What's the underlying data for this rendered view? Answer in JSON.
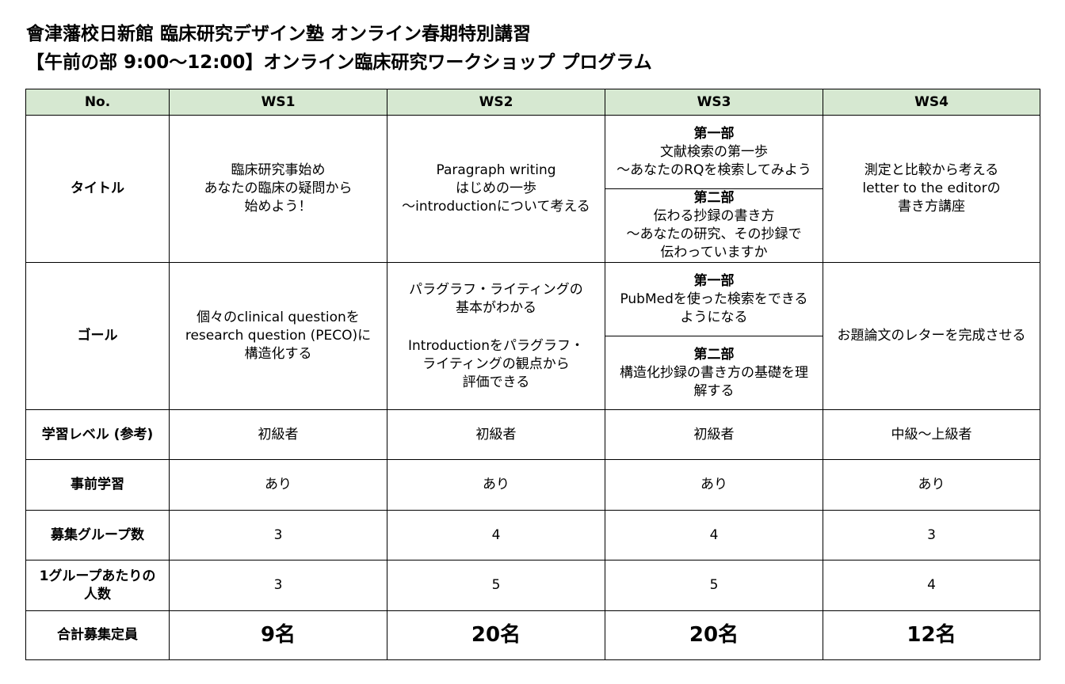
{
  "header": {
    "title_line1": "會津藩校日新館 臨床研究デザイン塾 オンライン春期特別講習",
    "title_line2": "【午前の部 9:00～12:00】オンライン臨床研究ワークショップ プログラム"
  },
  "table": {
    "columns": [
      "No.",
      "WS1",
      "WS2",
      "WS3",
      "WS4"
    ],
    "row_labels": {
      "title": "タイトル",
      "goal": "ゴール",
      "level": "学習レベル (参考)",
      "prestudy": "事前学習",
      "groups": "募集グループ数",
      "per_group": "1グループあたりの\n人数",
      "total": "合計募集定員"
    },
    "title_row": {
      "ws1": "臨床研究事始め\nあなたの臨床の疑問から\n始めよう！",
      "ws2": "Paragraph writing\nはじめの一歩\n～introductionについて考える",
      "ws3_part1_head": "第一部",
      "ws3_part1": "文献検索の第一歩\n～あなたのRQを検索してみよう",
      "ws3_part2_head": "第二部",
      "ws3_part2": "伝わる抄録の書き方\n～あなたの研究、その抄録で\n伝わっていますか",
      "ws4": "測定と比較から考える\nletter to the editorの\n書き方講座"
    },
    "goal_row": {
      "ws1": "個々のclinical questionを\nresearch question (PECO)に\n構造化する",
      "ws2_a": "パラグラフ・ライティングの\n基本がわかる",
      "ws2_b": "Introductionをパラグラフ・\nライティングの観点から\n評価できる",
      "ws3_part1_head": "第一部",
      "ws3_part1": "PubMedを使った検索をできる\nようになる",
      "ws3_part2_head": "第二部",
      "ws3_part2": "構造化抄録の書き方の基礎を理\n解する",
      "ws4": "お題論文のレターを完成させる"
    },
    "level_row": [
      "初級者",
      "初級者",
      "初級者",
      "中級～上級者"
    ],
    "prestudy_row": [
      "あり",
      "あり",
      "あり",
      "あり"
    ],
    "groups_row": [
      "3",
      "4",
      "4",
      "3"
    ],
    "per_group_row": [
      "3",
      "5",
      "5",
      "4"
    ],
    "total_row": [
      "9名",
      "20名",
      "20名",
      "12名"
    ]
  }
}
